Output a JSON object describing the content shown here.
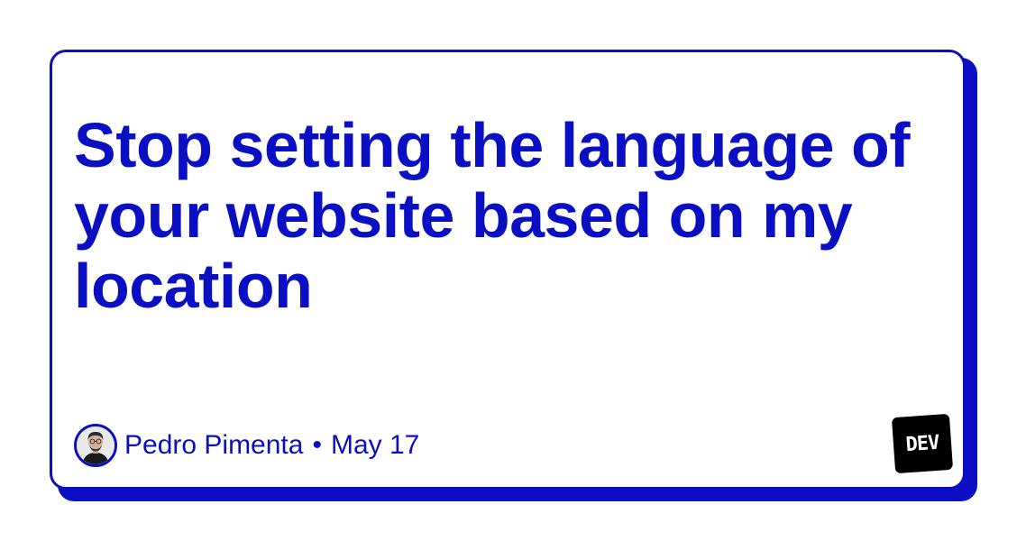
{
  "article": {
    "title": "Stop setting the language of your website based on my location"
  },
  "author": {
    "name": "Pedro Pimenta",
    "avatar_icon": "person-avatar-icon"
  },
  "meta": {
    "separator": "•",
    "date": "May 17"
  },
  "brand": {
    "logo_text": "DEV",
    "logo_icon": "dev-logo-icon"
  },
  "colors": {
    "accent": "#0b0fc4",
    "background": "#ffffff",
    "logo_bg": "#000000"
  }
}
